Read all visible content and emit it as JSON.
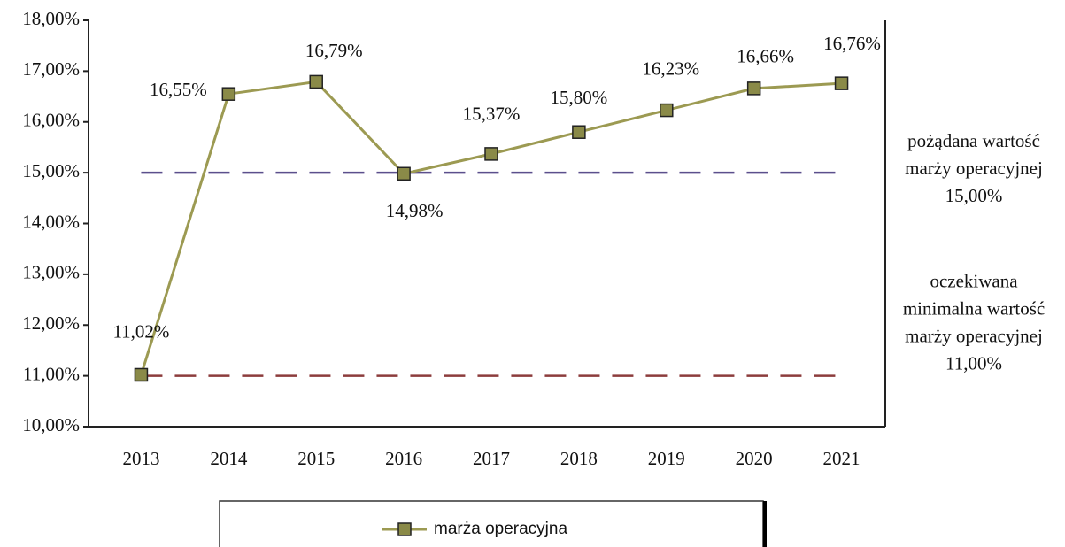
{
  "chart_data": {
    "type": "line",
    "categories": [
      "2013",
      "2014",
      "2015",
      "2016",
      "2017",
      "2018",
      "2019",
      "2020",
      "2021"
    ],
    "series": [
      {
        "name": "marża operacyjna",
        "color": "#9c9a52",
        "marker_color": "#8a8a48",
        "values": [
          11.02,
          16.55,
          16.79,
          14.98,
          15.37,
          15.8,
          16.23,
          16.66,
          16.76
        ],
        "value_labels": [
          "11,02%",
          "16,55%",
          "16,79%",
          "14,98%",
          "15,37%",
          "15,80%",
          "16,23%",
          "16,66%",
          "16,76%"
        ]
      }
    ],
    "ylim": [
      10,
      18
    ],
    "yticks": [
      {
        "value": 10,
        "label": "10,00%"
      },
      {
        "value": 11,
        "label": "11,00%"
      },
      {
        "value": 12,
        "label": "12,00%"
      },
      {
        "value": 13,
        "label": "13,00%"
      },
      {
        "value": 14,
        "label": "14,00%"
      },
      {
        "value": 15,
        "label": "15,00%"
      },
      {
        "value": 16,
        "label": "16,00%"
      },
      {
        "value": 17,
        "label": "17,00%"
      },
      {
        "value": 18,
        "label": "18,00%"
      }
    ],
    "reference_lines": [
      {
        "value": 15,
        "color": "#5b4f8c",
        "label": [
          "pożądana wartość",
          "marży operacyjnej",
          "15,00%"
        ]
      },
      {
        "value": 11,
        "color": "#8c3c3c",
        "label": [
          "oczekiwana",
          "minimalna wartość",
          "marży operacyjnej",
          "11,00%"
        ]
      }
    ]
  }
}
